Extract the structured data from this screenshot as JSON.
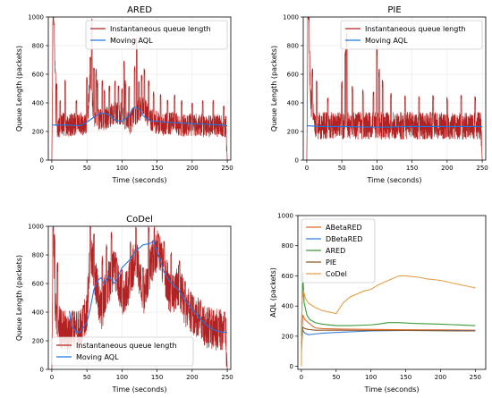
{
  "chart_data": [
    {
      "id": "ared",
      "type": "line",
      "title": "ARED",
      "xlabel": "Time (seconds)",
      "ylabel": "Queue Length (packets)",
      "xlim": [
        -5,
        255
      ],
      "ylim": [
        0,
        1000
      ],
      "xticks": [
        0,
        50,
        100,
        150,
        200,
        250
      ],
      "yticks": [
        0,
        200,
        400,
        600,
        800,
        1000
      ],
      "grid": true,
      "legend_position": "upper-right",
      "series": [
        {
          "name": "Instantaneous queue length",
          "color": "#b22222",
          "style": "noisy",
          "x": [
            0,
            2,
            4,
            6,
            8,
            12,
            20,
            30,
            40,
            50,
            55,
            60,
            70,
            80,
            90,
            100,
            110,
            120,
            130,
            140,
            150,
            160,
            170,
            180,
            190,
            200,
            210,
            220,
            230,
            240,
            248,
            250
          ],
          "y": [
            0,
            1000,
            800,
            250,
            180,
            260,
            240,
            250,
            260,
            240,
            600,
            300,
            280,
            300,
            330,
            320,
            250,
            330,
            380,
            280,
            260,
            250,
            260,
            250,
            240,
            250,
            245,
            240,
            245,
            240,
            230,
            0
          ],
          "amplitude": 80,
          "spikes": [
            [
              2,
              1000
            ],
            [
              3,
              950
            ],
            [
              5,
              620
            ],
            [
              7,
              540
            ],
            [
              12,
              420
            ],
            [
              19,
              560
            ],
            [
              35,
              420
            ],
            [
              50,
              580
            ],
            [
              55,
              720
            ],
            [
              57,
              1000
            ],
            [
              60,
              650
            ],
            [
              63,
              640
            ],
            [
              65,
              560
            ],
            [
              72,
              560
            ],
            [
              75,
              500
            ],
            [
              82,
              520
            ],
            [
              90,
              560
            ],
            [
              95,
              520
            ],
            [
              100,
              500
            ],
            [
              103,
              700
            ],
            [
              105,
              560
            ],
            [
              110,
              520
            ],
            [
              118,
              660
            ],
            [
              121,
              880
            ],
            [
              124,
              560
            ],
            [
              128,
              600
            ],
            [
              132,
              640
            ],
            [
              138,
              560
            ],
            [
              145,
              480
            ],
            [
              155,
              460
            ],
            [
              165,
              420
            ],
            [
              175,
              460
            ],
            [
              185,
              420
            ],
            [
              200,
              400
            ],
            [
              215,
              420
            ],
            [
              230,
              420
            ],
            [
              245,
              380
            ]
          ]
        },
        {
          "name": "Moving AQL",
          "color": "#1f77e4",
          "style": "smooth",
          "x": [
            0,
            20,
            40,
            50,
            60,
            70,
            80,
            90,
            100,
            110,
            115,
            120,
            125,
            130,
            140,
            160,
            180,
            200,
            220,
            240,
            250
          ],
          "y": [
            245,
            245,
            240,
            265,
            300,
            330,
            320,
            280,
            270,
            310,
            360,
            370,
            350,
            310,
            275,
            265,
            260,
            255,
            250,
            245,
            240
          ]
        }
      ]
    },
    {
      "id": "pie",
      "type": "line",
      "title": "PIE",
      "xlabel": "Time (seconds)",
      "ylabel": "Queue Length (packets)",
      "xlim": [
        -5,
        255
      ],
      "ylim": [
        0,
        1000
      ],
      "xticks": [
        0,
        50,
        100,
        150,
        200,
        250
      ],
      "yticks": [
        0,
        200,
        400,
        600,
        800,
        1000
      ],
      "grid": true,
      "legend_position": "upper-right",
      "series": [
        {
          "name": "Instantaneous queue length",
          "color": "#b22222",
          "style": "noisy",
          "x": [
            0,
            2,
            6,
            12,
            20,
            40,
            50,
            60,
            80,
            100,
            120,
            140,
            160,
            180,
            200,
            220,
            240,
            248,
            250
          ],
          "y": [
            0,
            1000,
            400,
            240,
            240,
            240,
            240,
            240,
            240,
            240,
            240,
            240,
            240,
            240,
            240,
            240,
            240,
            240,
            0
          ],
          "amplitude": 95,
          "spikes": [
            [
              2,
              1000
            ],
            [
              3,
              1000
            ],
            [
              8,
              640
            ],
            [
              14,
              560
            ],
            [
              30,
              440
            ],
            [
              50,
              560
            ],
            [
              55,
              800
            ],
            [
              57,
              900
            ],
            [
              65,
              520
            ],
            [
              80,
              500
            ],
            [
              95,
              480
            ],
            [
              100,
              800
            ],
            [
              103,
              640
            ],
            [
              108,
              560
            ],
            [
              120,
              480
            ],
            [
              140,
              460
            ],
            [
              160,
              450
            ],
            [
              180,
              460
            ],
            [
              200,
              440
            ],
            [
              220,
              460
            ],
            [
              240,
              450
            ]
          ]
        },
        {
          "name": "Moving AQL",
          "color": "#1f77e4",
          "style": "smooth",
          "x": [
            0,
            20,
            50,
            100,
            150,
            200,
            250
          ],
          "y": [
            240,
            235,
            235,
            230,
            235,
            235,
            235
          ]
        }
      ]
    },
    {
      "id": "codel",
      "type": "line",
      "title": "CoDel",
      "xlabel": "Time (seconds)",
      "ylabel": "Queue Length (packets)",
      "xlim": [
        -5,
        255
      ],
      "ylim": [
        0,
        1000
      ],
      "xticks": [
        0,
        50,
        100,
        150,
        200,
        250
      ],
      "yticks": [
        0,
        200,
        400,
        600,
        800,
        1000
      ],
      "grid": true,
      "legend_position": "lower-left",
      "series": [
        {
          "name": "Instantaneous queue length",
          "color": "#b22222",
          "style": "noisy",
          "x": [
            0,
            2,
            5,
            10,
            20,
            30,
            40,
            50,
            55,
            60,
            70,
            80,
            90,
            100,
            110,
            120,
            130,
            140,
            150,
            160,
            170,
            180,
            190,
            200,
            210,
            220,
            230,
            240,
            248,
            250
          ],
          "y": [
            0,
            1000,
            400,
            300,
            260,
            260,
            260,
            380,
            850,
            700,
            400,
            600,
            700,
            500,
            600,
            800,
            500,
            700,
            850,
            700,
            500,
            600,
            450,
            400,
            350,
            300,
            280,
            280,
            260,
            0
          ],
          "amplitude": 150,
          "spikes": [
            [
              2,
              1000
            ],
            [
              4,
              950
            ],
            [
              8,
              750
            ],
            [
              30,
              400
            ],
            [
              45,
              450
            ],
            [
              55,
              1000
            ],
            [
              60,
              960
            ],
            [
              72,
              800
            ],
            [
              78,
              880
            ],
            [
              85,
              960
            ],
            [
              92,
              780
            ],
            [
              100,
              700
            ],
            [
              112,
              900
            ],
            [
              120,
              1000
            ],
            [
              130,
              720
            ],
            [
              138,
              1000
            ],
            [
              146,
              1000
            ],
            [
              152,
              950
            ],
            [
              160,
              900
            ],
            [
              170,
              820
            ],
            [
              182,
              760
            ],
            [
              190,
              620
            ],
            [
              200,
              520
            ],
            [
              212,
              440
            ],
            [
              225,
              400
            ],
            [
              238,
              360
            ],
            [
              246,
              400
            ]
          ]
        },
        {
          "name": "Moving AQL",
          "color": "#1f77e4",
          "style": "smooth",
          "x": [
            25,
            28,
            32,
            35,
            40,
            50,
            55,
            60,
            65,
            70,
            75,
            80,
            90,
            100,
            110,
            120,
            130,
            140,
            145,
            150,
            160,
            170,
            180,
            190,
            200,
            210,
            220,
            230,
            240,
            250
          ],
          "y": [
            410,
            300,
            280,
            260,
            260,
            330,
            430,
            560,
            620,
            640,
            600,
            650,
            600,
            710,
            760,
            830,
            870,
            880,
            900,
            820,
            680,
            600,
            560,
            480,
            420,
            360,
            310,
            280,
            260,
            260
          ]
        }
      ]
    },
    {
      "id": "aql",
      "type": "line",
      "title": "",
      "xlabel": "Time (seconds)",
      "ylabel": "AQL (packets)",
      "xlim": [
        -5,
        265
      ],
      "ylim": [
        -20,
        1000
      ],
      "xticks": [
        0,
        50,
        100,
        150,
        200,
        250
      ],
      "yticks": [
        0,
        200,
        400,
        600,
        800,
        1000
      ],
      "grid": false,
      "legend_position": "upper-left",
      "series": [
        {
          "name": "ABetaRED",
          "color": "#e06b2a",
          "x": [
            0,
            2,
            5,
            10,
            15,
            20,
            30,
            50,
            100,
            150,
            200,
            250
          ],
          "y": [
            150,
            340,
            310,
            290,
            270,
            255,
            250,
            248,
            245,
            243,
            242,
            240
          ]
        },
        {
          "name": "DBetaRED",
          "color": "#3b7dd8",
          "x": [
            0,
            2,
            5,
            10,
            20,
            30,
            50,
            100,
            150,
            200,
            250
          ],
          "y": [
            300,
            240,
            220,
            210,
            215,
            220,
            225,
            235,
            238,
            238,
            237
          ]
        },
        {
          "name": "ARED",
          "color": "#3c9b3c",
          "x": [
            0,
            2,
            4,
            8,
            12,
            20,
            30,
            50,
            70,
            100,
            110,
            125,
            140,
            160,
            200,
            250
          ],
          "y": [
            200,
            620,
            420,
            340,
            310,
            290,
            280,
            270,
            270,
            275,
            280,
            290,
            290,
            285,
            280,
            270
          ]
        },
        {
          "name": "PIE",
          "color": "#8b5a2b",
          "x": [
            0,
            2,
            5,
            10,
            20,
            50,
            100,
            150,
            200,
            250
          ],
          "y": [
            100,
            260,
            250,
            245,
            240,
            240,
            238,
            238,
            236,
            235
          ]
        },
        {
          "name": "CoDel",
          "color": "#e3a04a",
          "x": [
            0,
            1,
            3,
            6,
            10,
            20,
            30,
            40,
            50,
            60,
            70,
            80,
            90,
            100,
            110,
            120,
            130,
            140,
            150,
            160,
            170,
            180,
            200,
            220,
            240,
            250
          ],
          "y": [
            0,
            430,
            500,
            450,
            420,
            390,
            370,
            360,
            350,
            420,
            460,
            480,
            500,
            510,
            540,
            560,
            580,
            600,
            600,
            595,
            590,
            580,
            570,
            550,
            530,
            520
          ]
        }
      ]
    }
  ]
}
